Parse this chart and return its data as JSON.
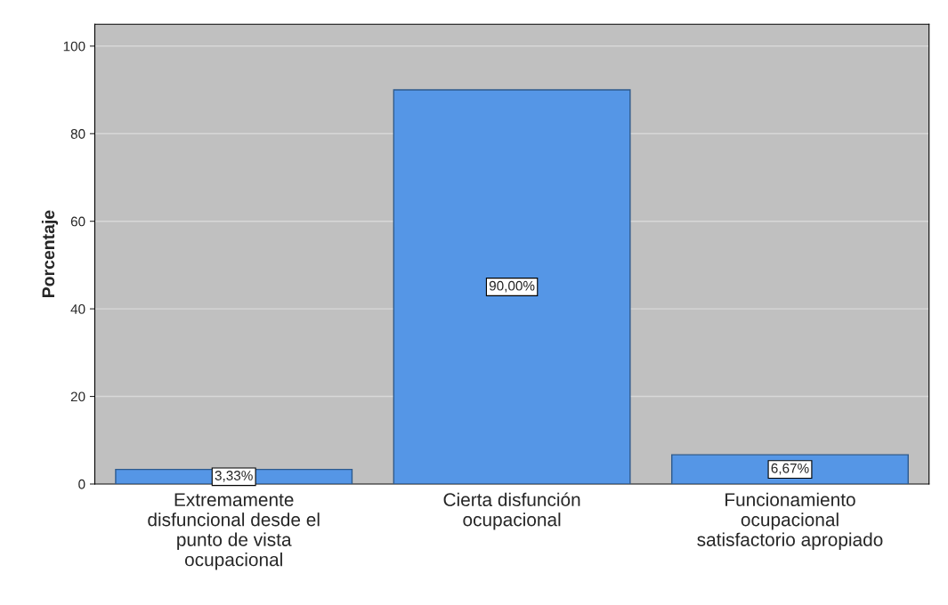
{
  "chart_data": {
    "type": "bar",
    "categories": [
      "Extremamente\ndisfuncional desde el\npunto de vista\nocupacional",
      "Cierta disfunción\nocupacional",
      "Funcionamiento\nocupacional\nsatisfactorio apropiado"
    ],
    "values": [
      3.33,
      90,
      6.67
    ],
    "value_labels": [
      "3,33%",
      "90,00%",
      "6,67%"
    ],
    "color": "#5596e6",
    "ylabel": "Porcentaje",
    "ylim": [
      0,
      105
    ],
    "yticks": [
      0,
      20,
      40,
      60,
      80,
      100
    ],
    "grid": "y"
  }
}
